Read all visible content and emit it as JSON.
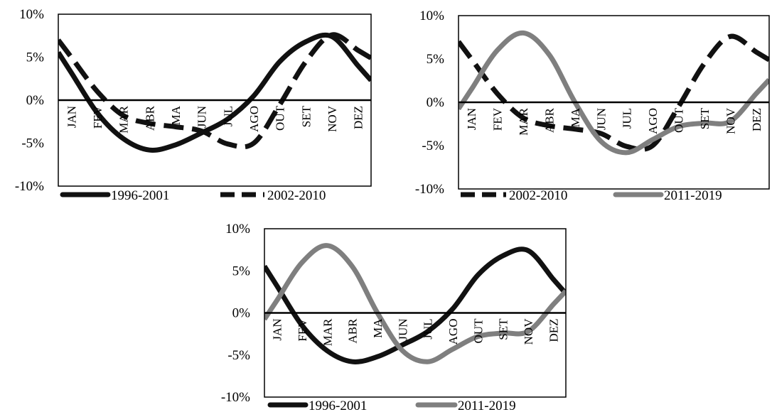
{
  "colors": {
    "series_1996_2001": "#111111",
    "series_2002_2010": "#111111",
    "series_2011_2019": "#7f7f7f",
    "zero_line": "#000000"
  },
  "chart_data": [
    {
      "type": "line",
      "title": "",
      "categories": [
        "JAN",
        "FEV",
        "MAR",
        "ABR",
        "MA",
        "JUN",
        "JUL",
        "AGO",
        "OUT",
        "SET",
        "NOV",
        "DEZ"
      ],
      "ylim": [
        -10,
        10
      ],
      "yticks": [
        "10%",
        "5%",
        "0%",
        "-5%",
        "-10%"
      ],
      "legend_position": "bottom",
      "grid": false,
      "series": [
        {
          "name": "1996-2001",
          "style": "solid",
          "color": "#111111",
          "values": [
            3.2,
            -1.5,
            -4.5,
            -5.8,
            -5.2,
            -3.8,
            -2.2,
            0.5,
            4.5,
            6.8,
            7.4,
            4.0
          ]
        },
        {
          "name": "2002-2010",
          "style": "dashed",
          "color": "#111111",
          "values": [
            5.0,
            1.0,
            -1.8,
            -2.7,
            -3.1,
            -3.6,
            -5.1,
            -5.0,
            -0.5,
            4.5,
            7.6,
            5.8
          ]
        }
      ]
    },
    {
      "type": "line",
      "title": "",
      "categories": [
        "JAN",
        "FEV",
        "MAR",
        "ABR",
        "MA",
        "JUN",
        "JUL",
        "AGO",
        "OUT",
        "SET",
        "NOV",
        "DEZ"
      ],
      "ylim": [
        -10,
        10
      ],
      "yticks": [
        "10%",
        "5%",
        "0%",
        "-5%",
        "-10%"
      ],
      "legend_position": "bottom",
      "grid": false,
      "series": [
        {
          "name": "2002-2010",
          "style": "dashed",
          "color": "#111111",
          "values": [
            5.0,
            1.0,
            -1.8,
            -2.7,
            -3.1,
            -3.6,
            -5.1,
            -5.0,
            -0.5,
            4.5,
            7.6,
            5.8
          ]
        },
        {
          "name": "2011-2019",
          "style": "solid",
          "color": "#7f7f7f",
          "values": [
            1.5,
            6.0,
            8.0,
            5.5,
            0.0,
            -4.5,
            -5.8,
            -4.3,
            -2.8,
            -2.4,
            -2.2,
            1.0
          ]
        }
      ]
    },
    {
      "type": "line",
      "title": "",
      "categories": [
        "JAN",
        "FEV",
        "MAR",
        "ABR",
        "MA",
        "JUN",
        "JUL",
        "AGO",
        "OUT",
        "SET",
        "NOV",
        "DEZ"
      ],
      "ylim": [
        -10,
        10
      ],
      "yticks": [
        "10%",
        "5%",
        "0%",
        "-5%",
        "-10%"
      ],
      "legend_position": "bottom",
      "grid": false,
      "series": [
        {
          "name": "1996-2001",
          "style": "solid",
          "color": "#111111",
          "values": [
            3.2,
            -1.5,
            -4.5,
            -5.8,
            -5.2,
            -3.8,
            -2.2,
            0.5,
            4.5,
            6.8,
            7.4,
            4.0
          ]
        },
        {
          "name": "2011-2019",
          "style": "solid",
          "color": "#7f7f7f",
          "values": [
            1.5,
            6.0,
            8.0,
            5.5,
            0.0,
            -4.5,
            -5.8,
            -4.3,
            -2.8,
            -2.4,
            -2.2,
            1.0
          ]
        }
      ]
    }
  ]
}
